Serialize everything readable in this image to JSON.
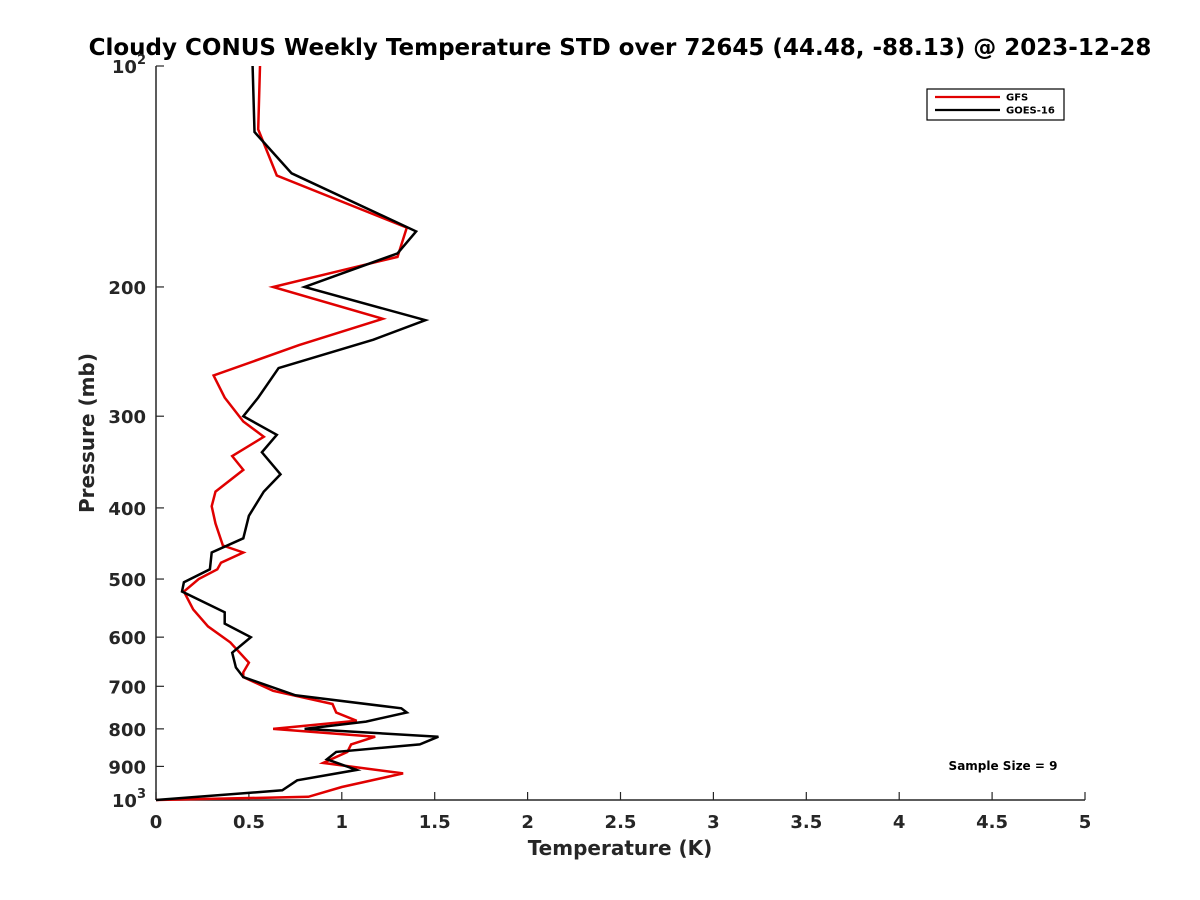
{
  "chart_data": {
    "type": "line",
    "title": "Cloudy CONUS Weekly Temperature STD over 72645 (44.48, -88.13) @ 2023-12-28",
    "xlabel": "Temperature (K)",
    "ylabel": "Pressure (mb)",
    "xlim": [
      0,
      5
    ],
    "ylim": [
      100,
      1000
    ],
    "yscale": "log",
    "y_reversed": true,
    "grid": false,
    "legend_position": "top-right",
    "x_ticks": [
      "0",
      "0.5",
      "1",
      "1.5",
      "2",
      "2.5",
      "3",
      "3.5",
      "4",
      "4.5",
      "5"
    ],
    "x_tick_values": [
      0,
      0.5,
      1,
      1.5,
      2,
      2.5,
      3,
      3.5,
      4,
      4.5,
      5
    ],
    "y_ticks": [
      {
        "value": 100,
        "base": "10",
        "exp": "2"
      },
      {
        "value": 200,
        "label": "200"
      },
      {
        "value": 300,
        "label": "300"
      },
      {
        "value": 400,
        "label": "400"
      },
      {
        "value": 500,
        "label": "500"
      },
      {
        "value": 600,
        "label": "600"
      },
      {
        "value": 700,
        "label": "700"
      },
      {
        "value": 800,
        "label": "800"
      },
      {
        "value": 900,
        "label": "900"
      },
      {
        "value": 1000,
        "base": "10",
        "exp": "3"
      }
    ],
    "annotation": "Sample Size = 9",
    "series": [
      {
        "name": "GFS",
        "color": "#e00000",
        "x": [
          0.56,
          0.55,
          0.65,
          1.35,
          1.3,
          0.63,
          1.22,
          0.77,
          0.31,
          0.37,
          0.47,
          0.58,
          0.41,
          0.47,
          0.32,
          0.3,
          0.32,
          0.36,
          0.47,
          0.35,
          0.33,
          0.23,
          0.15,
          0.2,
          0.28,
          0.4,
          0.5,
          0.47,
          0.47,
          0.63,
          0.95,
          0.97,
          1.08,
          0.63,
          1.18,
          1.05,
          1.03,
          0.9,
          1.33,
          1.0,
          0.82,
          0.0
        ],
        "y": [
          100,
          122,
          141,
          166,
          182,
          200,
          221,
          240,
          264,
          283,
          305,
          320,
          340,
          355,
          380,
          398,
          420,
          450,
          460,
          475,
          485,
          500,
          520,
          550,
          580,
          610,
          650,
          670,
          680,
          710,
          740,
          760,
          780,
          800,
          820,
          840,
          860,
          890,
          920,
          960,
          990,
          1000
        ]
      },
      {
        "name": "GOES-16",
        "color": "#000000",
        "x": [
          0.52,
          0.53,
          0.73,
          1.4,
          1.3,
          0.8,
          1.45,
          1.17,
          0.66,
          0.55,
          0.47,
          0.65,
          0.57,
          0.67,
          0.58,
          0.5,
          0.47,
          0.3,
          0.29,
          0.15,
          0.14,
          0.37,
          0.37,
          0.51,
          0.41,
          0.43,
          0.47,
          0.75,
          1.32,
          1.35,
          1.13,
          0.8,
          1.52,
          1.42,
          0.97,
          0.92,
          1.08,
          0.76,
          0.68,
          0.0
        ],
        "y": [
          100,
          123,
          140,
          168,
          180,
          200,
          222,
          236,
          258,
          283,
          300,
          318,
          336,
          360,
          380,
          410,
          440,
          460,
          485,
          505,
          520,
          555,
          575,
          600,
          630,
          660,
          680,
          720,
          750,
          760,
          782,
          800,
          820,
          840,
          860,
          880,
          910,
          940,
          970,
          1000
        ]
      }
    ]
  }
}
